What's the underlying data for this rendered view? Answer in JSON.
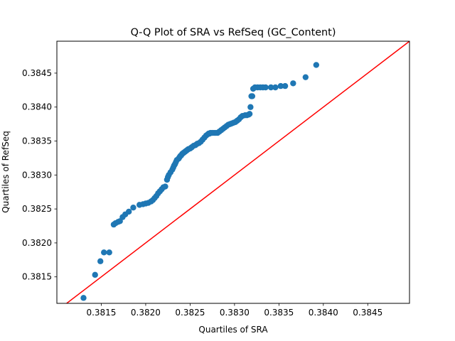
{
  "chart_data": {
    "type": "scatter",
    "title": "Q-Q Plot of SRA vs RefSeq (GC_Content)",
    "xlabel": "Quartiles of SRA",
    "ylabel": "Quartiles of RefSeq",
    "xlim": [
      0.381,
      0.38497
    ],
    "ylim": [
      0.38111,
      0.38497
    ],
    "xticks": [
      0.3815,
      0.382,
      0.3825,
      0.383,
      0.3835,
      0.384,
      0.3845
    ],
    "xtick_labels": [
      "0.3815",
      "0.3820",
      "0.3825",
      "0.3830",
      "0.3835",
      "0.3840",
      "0.3845"
    ],
    "yticks": [
      0.3815,
      0.382,
      0.3825,
      0.383,
      0.3835,
      0.384,
      0.3845
    ],
    "ytick_labels": [
      "0.3815",
      "0.3820",
      "0.3825",
      "0.3830",
      "0.3835",
      "0.3840",
      "0.3845"
    ],
    "grid": false,
    "colors": {
      "points": "#1f77b4",
      "reference_line": "#ff0000"
    },
    "reference_line": {
      "x": [
        0.381,
        0.38497
      ],
      "y": [
        0.381,
        0.38497
      ]
    },
    "series": [
      {
        "x": [
          0.3813,
          0.38143,
          0.38149,
          0.38153,
          0.38159,
          0.38164,
          0.38166,
          0.38169,
          0.38171,
          0.38174,
          0.38177,
          0.38181,
          0.38186,
          0.38193,
          0.38197,
          0.382,
          0.38203,
          0.38206,
          0.38208,
          0.3821,
          0.38212,
          0.38214,
          0.38216,
          0.38218,
          0.3822,
          0.38222,
          0.38224,
          0.38225,
          0.38226,
          0.38228,
          0.3823,
          0.38231,
          0.38232,
          0.38233,
          0.38234,
          0.38235,
          0.38237,
          0.38238,
          0.38239,
          0.3824,
          0.38241,
          0.38242,
          0.38243,
          0.38244,
          0.38245,
          0.38246,
          0.38247,
          0.38248,
          0.3825,
          0.38251,
          0.38252,
          0.38254,
          0.38256,
          0.38258,
          0.3826,
          0.38262,
          0.38264,
          0.38266,
          0.38268,
          0.3827,
          0.38271,
          0.38272,
          0.38273,
          0.38275,
          0.38277,
          0.38279,
          0.38281,
          0.38283,
          0.38285,
          0.38287,
          0.38289,
          0.38291,
          0.38293,
          0.38295,
          0.38297,
          0.38299,
          0.38301,
          0.38303,
          0.38305,
          0.38307,
          0.38309,
          0.38312,
          0.38314,
          0.38316,
          0.38317,
          0.38318,
          0.38319,
          0.3832,
          0.38321,
          0.38323,
          0.38326,
          0.38329,
          0.38332,
          0.38335,
          0.38341,
          0.38346,
          0.38352,
          0.38357,
          0.38366,
          0.3838,
          0.38392
        ],
        "y": [
          0.38119,
          0.38153,
          0.38173,
          0.38186,
          0.38186,
          0.38227,
          0.38229,
          0.38231,
          0.38232,
          0.38238,
          0.38242,
          0.38246,
          0.38252,
          0.38256,
          0.38257,
          0.38258,
          0.38259,
          0.38261,
          0.38263,
          0.38266,
          0.38269,
          0.38273,
          0.38276,
          0.38279,
          0.38282,
          0.38283,
          0.38293,
          0.38297,
          0.383,
          0.38304,
          0.38308,
          0.38311,
          0.38314,
          0.38316,
          0.38319,
          0.38322,
          0.38324,
          0.38326,
          0.38328,
          0.38329,
          0.38331,
          0.38332,
          0.38333,
          0.38334,
          0.38335,
          0.38336,
          0.38337,
          0.38338,
          0.38339,
          0.3834,
          0.38341,
          0.38343,
          0.38344,
          0.38346,
          0.38347,
          0.38349,
          0.38352,
          0.38355,
          0.38358,
          0.3836,
          0.38361,
          0.38361,
          0.38362,
          0.38362,
          0.38362,
          0.38362,
          0.38362,
          0.38364,
          0.38366,
          0.38368,
          0.3837,
          0.38372,
          0.38374,
          0.38375,
          0.38376,
          0.38377,
          0.38378,
          0.3838,
          0.38382,
          0.38385,
          0.38387,
          0.38388,
          0.38388,
          0.38389,
          0.3839,
          0.384,
          0.38416,
          0.38416,
          0.38427,
          0.38429,
          0.38429,
          0.38429,
          0.38429,
          0.38429,
          0.38429,
          0.38429,
          0.38431,
          0.38431,
          0.38435,
          0.38444,
          0.38462
        ]
      }
    ]
  }
}
